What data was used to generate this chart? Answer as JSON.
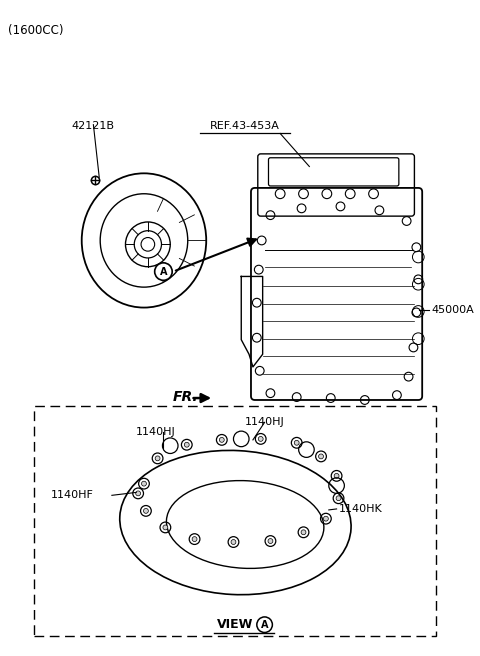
{
  "background_color": "#ffffff",
  "fig_width": 4.8,
  "fig_height": 6.56,
  "dpi": 100,
  "labels": {
    "top_left": "(1600CC)",
    "part_42121B": "42121B",
    "part_ref": "REF.43-453A",
    "part_45000A": "45000A",
    "fr_label": "FR.",
    "view_label": "VIEW",
    "part_1140HJ_left": "1140HJ",
    "part_1140HJ_right": "1140HJ",
    "part_1140HF": "1140HF",
    "part_1140HK": "1140HK",
    "circle_a": "A"
  }
}
